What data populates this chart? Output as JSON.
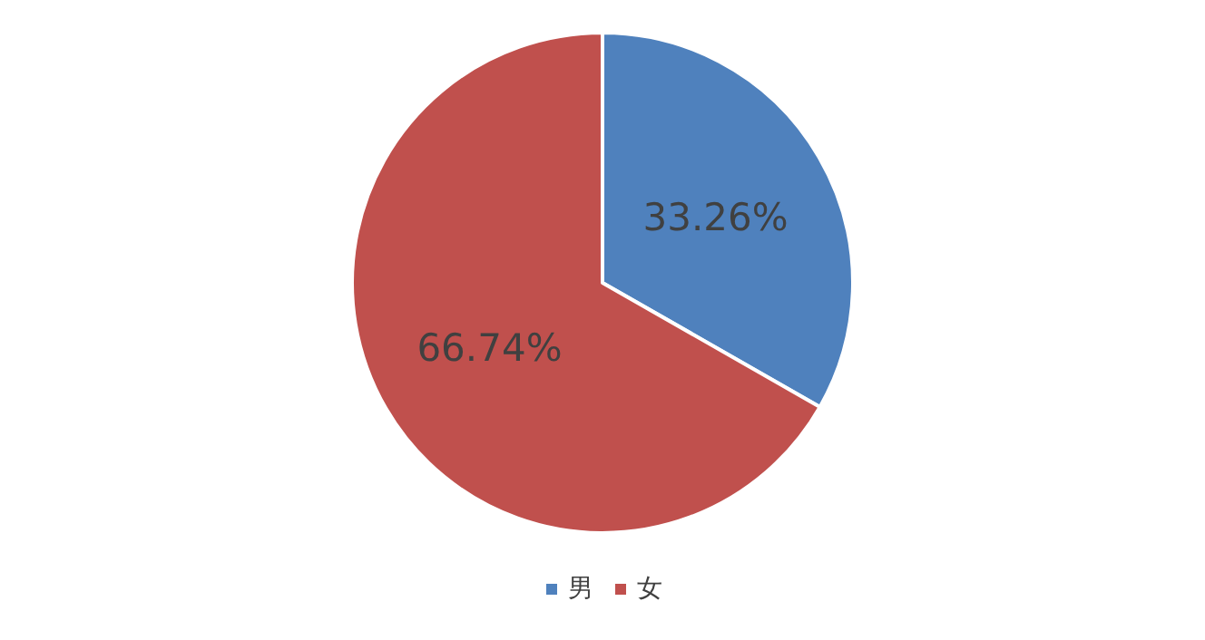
{
  "chart_data": {
    "type": "pie",
    "categories": [
      "男",
      "女"
    ],
    "values": [
      33.26,
      66.74
    ],
    "colors": [
      "#4f81bd",
      "#c0504d"
    ],
    "value_labels": [
      "33.26%",
      "66.74%"
    ],
    "legend": "bottom"
  }
}
